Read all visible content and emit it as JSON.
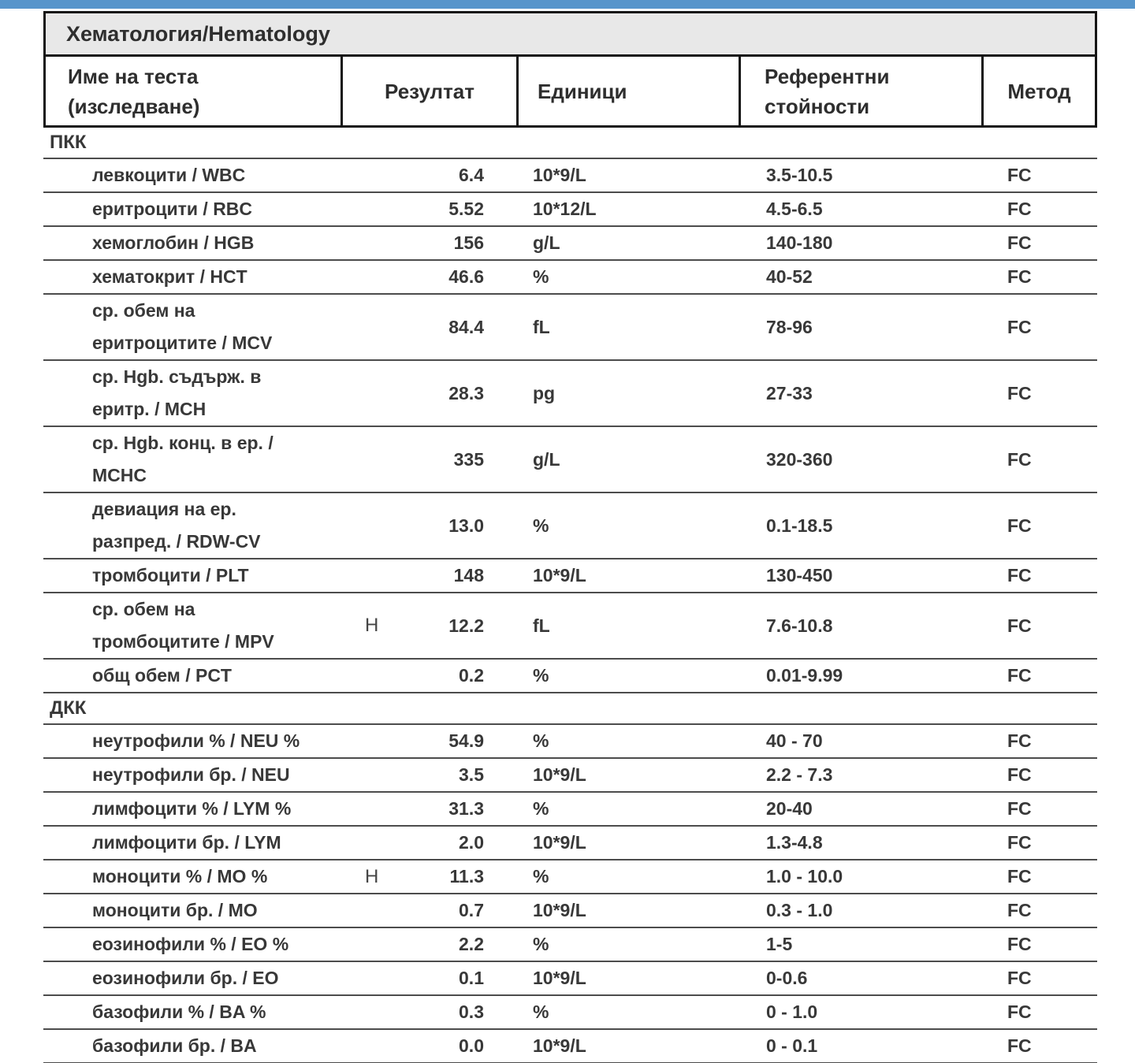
{
  "accent_color": "#5795CB",
  "title_background": "#E8E8E8",
  "border_color": "#151515",
  "separator_color": "#4C4C4C",
  "text_color": "#383838",
  "table": {
    "title": "Хематология/Hematology",
    "columns": [
      {
        "lines": [
          "Име на теста",
          "(изследване)"
        ]
      },
      {
        "lines": [
          "Резултат"
        ]
      },
      {
        "lines": [
          "Единици"
        ]
      },
      {
        "lines": [
          "Референтни",
          "стойности"
        ]
      },
      {
        "lines": [
          "Метод"
        ]
      }
    ],
    "sections": [
      {
        "name": "ПКК",
        "rows": [
          {
            "name_lines": [
              "левкоцити / WBC"
            ],
            "flag": "",
            "result": "6.4",
            "units": "10*9/L",
            "reference": "3.5-10.5",
            "method": "FC"
          },
          {
            "name_lines": [
              "еритроцити / RBC"
            ],
            "flag": "",
            "result": "5.52",
            "units": "10*12/L",
            "reference": "4.5-6.5",
            "method": "FC"
          },
          {
            "name_lines": [
              "хемоглобин / HGB"
            ],
            "flag": "",
            "result": "156",
            "units": "g/L",
            "reference": "140-180",
            "method": "FC"
          },
          {
            "name_lines": [
              "хематокрит / HCT"
            ],
            "flag": "",
            "result": "46.6",
            "units": "%",
            "reference": "40-52",
            "method": "FC"
          },
          {
            "name_lines": [
              "ср. обем на",
              "еритроцитите / MCV"
            ],
            "flag": "",
            "result": "84.4",
            "units": "fL",
            "reference": "78-96",
            "method": "FC"
          },
          {
            "name_lines": [
              "ср. Hgb. съдърж. в",
              "еритр. / MCH"
            ],
            "flag": "",
            "result": "28.3",
            "units": "pg",
            "reference": "27-33",
            "method": "FC"
          },
          {
            "name_lines": [
              "ср. Hgb. конц. в ер. /",
              "MCHC"
            ],
            "flag": "",
            "result": "335",
            "units": "g/L",
            "reference": "320-360",
            "method": "FC"
          },
          {
            "name_lines": [
              "девиация на ер.",
              "разпред. / RDW-CV"
            ],
            "flag": "",
            "result": "13.0",
            "units": "%",
            "reference": "0.1-18.5",
            "method": "FC"
          },
          {
            "name_lines": [
              "тромбоцити / PLT"
            ],
            "flag": "",
            "result": "148",
            "units": "10*9/L",
            "reference": "130-450",
            "method": "FC"
          },
          {
            "name_lines": [
              "ср. обем на",
              "тромбоцитите / MPV"
            ],
            "flag": "H",
            "result": "12.2",
            "units": "fL",
            "reference": "7.6-10.8",
            "method": "FC"
          },
          {
            "name_lines": [
              "общ обем / PCT"
            ],
            "flag": "",
            "result": "0.2",
            "units": "%",
            "reference": "0.01-9.99",
            "method": "FC"
          }
        ]
      },
      {
        "name": "ДКК",
        "rows": [
          {
            "name_lines": [
              "неутрофили % / NEU %"
            ],
            "flag": "",
            "result": "54.9",
            "units": "%",
            "reference": "40 - 70",
            "method": "FC"
          },
          {
            "name_lines": [
              "неутрофили бр. / NEU"
            ],
            "flag": "",
            "result": "3.5",
            "units": "10*9/L",
            "reference": "2.2 - 7.3",
            "method": "FC"
          },
          {
            "name_lines": [
              "лимфоцити % / LYM %"
            ],
            "flag": "",
            "result": "31.3",
            "units": "%",
            "reference": "20-40",
            "method": "FC"
          },
          {
            "name_lines": [
              "лимфоцити бр. / LYM"
            ],
            "flag": "",
            "result": "2.0",
            "units": "10*9/L",
            "reference": "1.3-4.8",
            "method": "FC"
          },
          {
            "name_lines": [
              "моноцити % / MO %"
            ],
            "flag": "H",
            "result": "11.3",
            "units": "%",
            "reference": "1.0 - 10.0",
            "method": "FC"
          },
          {
            "name_lines": [
              "моноцити бр. / MO"
            ],
            "flag": "",
            "result": "0.7",
            "units": "10*9/L",
            "reference": "0.3 - 1.0",
            "method": "FC"
          },
          {
            "name_lines": [
              "еозинофили % / EO %"
            ],
            "flag": "",
            "result": "2.2",
            "units": "%",
            "reference": "1-5",
            "method": "FC"
          },
          {
            "name_lines": [
              "еозинофили бр. / EO"
            ],
            "flag": "",
            "result": "0.1",
            "units": "10*9/L",
            "reference": "0-0.6",
            "method": "FC"
          },
          {
            "name_lines": [
              "базофили % / BA %"
            ],
            "flag": "",
            "result": "0.3",
            "units": "%",
            "reference": "0 - 1.0",
            "method": "FC"
          },
          {
            "name_lines": [
              "базофили бр. / BA"
            ],
            "flag": "",
            "result": "0.0",
            "units": "10*9/L",
            "reference": "0 - 0.1",
            "method": "FC"
          }
        ]
      }
    ]
  }
}
